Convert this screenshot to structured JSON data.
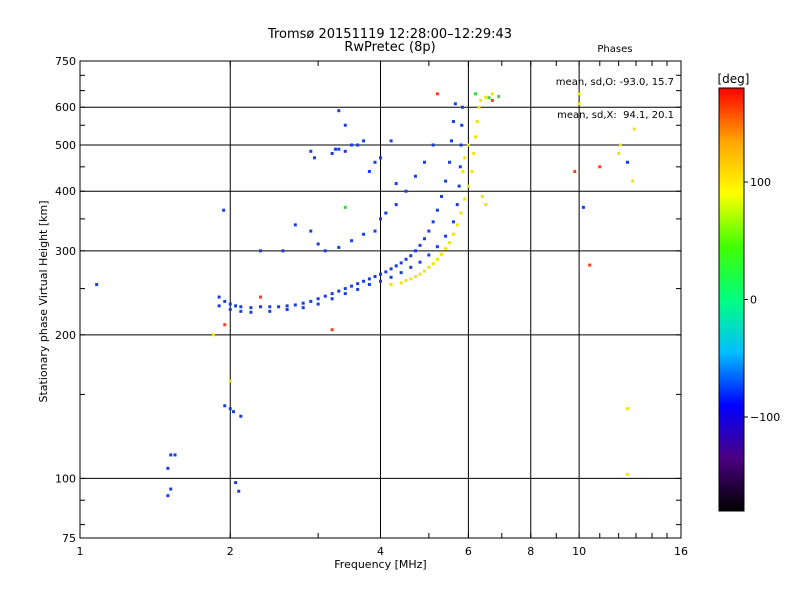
{
  "header": {
    "title1": "Tromsø 20151119 12:28:00–12:29:43",
    "title2": "RwPretec (8p)"
  },
  "phases": {
    "heading": "Phases",
    "line1": "mean, sd,O: -93.0, 15.7",
    "line2": "mean, sd,X:  94.1, 20.1"
  },
  "chart_data": {
    "type": "scatter",
    "xlabel": "Frequency [MHz]",
    "ylabel": "Stationary phase Virtual Height [km]",
    "xscale": "log",
    "yscale": "log",
    "xlim": [
      1,
      16
    ],
    "ylim": [
      75,
      750
    ],
    "xticks": [
      1,
      2,
      4,
      6,
      8,
      10,
      16
    ],
    "yticks": [
      75,
      100,
      200,
      300,
      400,
      500,
      600,
      750
    ],
    "x_gridlines": [
      2,
      4,
      6,
      8,
      10
    ],
    "y_gridlines": [
      100,
      200,
      300,
      400,
      500,
      600
    ],
    "colorbar": {
      "label": "[deg]",
      "range": [
        -180,
        180
      ],
      "ticks": [
        -100,
        0,
        100
      ],
      "colors": [
        "#000000",
        "#4b0082",
        "#0000ff",
        "#00bfff",
        "#00ff80",
        "#40ff00",
        "#ffff00",
        "#ffa500",
        "#ff0000"
      ]
    },
    "series": [
      {
        "mode": "O",
        "color": "#1a3de0",
        "points": [
          [
            1.08,
            255
          ],
          [
            1.5,
            105
          ],
          [
            1.52,
            112
          ],
          [
            1.5,
            92
          ],
          [
            1.55,
            112
          ],
          [
            1.52,
            95
          ],
          [
            1.95,
            142
          ],
          [
            2.0,
            140
          ],
          [
            2.03,
            138
          ],
          [
            2.1,
            135
          ],
          [
            1.94,
            365
          ],
          [
            2.05,
            98
          ],
          [
            2.08,
            94
          ],
          [
            1.9,
            240
          ],
          [
            1.95,
            235
          ],
          [
            2.0,
            232
          ],
          [
            2.05,
            230
          ],
          [
            2.1,
            229
          ],
          [
            2.2,
            228
          ],
          [
            2.3,
            229
          ],
          [
            2.4,
            229
          ],
          [
            2.5,
            229
          ],
          [
            2.6,
            230
          ],
          [
            2.7,
            231
          ],
          [
            2.8,
            233
          ],
          [
            2.9,
            235
          ],
          [
            3.0,
            238
          ],
          [
            3.1,
            241
          ],
          [
            3.2,
            244
          ],
          [
            3.3,
            247
          ],
          [
            3.4,
            250
          ],
          [
            3.5,
            253
          ],
          [
            3.6,
            256
          ],
          [
            3.7,
            259
          ],
          [
            3.8,
            262
          ],
          [
            3.9,
            265
          ],
          [
            4.0,
            268
          ],
          [
            4.1,
            271
          ],
          [
            4.2,
            275
          ],
          [
            4.3,
            279
          ],
          [
            4.4,
            283
          ],
          [
            4.5,
            288
          ],
          [
            4.6,
            293
          ],
          [
            4.7,
            300
          ],
          [
            4.8,
            308
          ],
          [
            4.9,
            318
          ],
          [
            5.0,
            330
          ],
          [
            5.1,
            345
          ],
          [
            5.2,
            365
          ],
          [
            5.3,
            390
          ],
          [
            5.4,
            420
          ],
          [
            5.5,
            460
          ],
          [
            5.55,
            510
          ],
          [
            5.6,
            560
          ],
          [
            5.65,
            610
          ],
          [
            1.9,
            230
          ],
          [
            2.0,
            226
          ],
          [
            2.1,
            224
          ],
          [
            2.2,
            223
          ],
          [
            2.4,
            224
          ],
          [
            2.6,
            226
          ],
          [
            2.8,
            228
          ],
          [
            3.0,
            232
          ],
          [
            3.2,
            238
          ],
          [
            3.4,
            244
          ],
          [
            3.6,
            249
          ],
          [
            3.8,
            255
          ],
          [
            4.0,
            259
          ],
          [
            4.2,
            264
          ],
          [
            4.4,
            270
          ],
          [
            4.6,
            277
          ],
          [
            4.8,
            284
          ],
          [
            5.0,
            294
          ],
          [
            5.2,
            306
          ],
          [
            5.4,
            322
          ],
          [
            5.6,
            345
          ],
          [
            5.7,
            375
          ],
          [
            5.75,
            410
          ],
          [
            5.78,
            450
          ],
          [
            5.8,
            500
          ],
          [
            5.82,
            550
          ],
          [
            5.84,
            600
          ],
          [
            3.0,
            310
          ],
          [
            3.1,
            300
          ],
          [
            3.3,
            305
          ],
          [
            3.5,
            315
          ],
          [
            3.7,
            325
          ],
          [
            3.9,
            330
          ],
          [
            4.0,
            350
          ],
          [
            4.1,
            360
          ],
          [
            4.3,
            375
          ],
          [
            4.5,
            400
          ],
          [
            4.7,
            430
          ],
          [
            4.9,
            460
          ],
          [
            5.1,
            500
          ],
          [
            4.2,
            510
          ],
          [
            4.0,
            470
          ],
          [
            3.9,
            460
          ],
          [
            3.8,
            440
          ],
          [
            4.3,
            415
          ],
          [
            3.4,
            485
          ],
          [
            3.3,
            490
          ],
          [
            3.6,
            500
          ],
          [
            3.7,
            510
          ],
          [
            3.4,
            550
          ],
          [
            2.9,
            485
          ],
          [
            2.95,
            470
          ],
          [
            3.2,
            480
          ],
          [
            3.25,
            490
          ],
          [
            2.9,
            330
          ],
          [
            2.7,
            340
          ],
          [
            3.3,
            590
          ],
          [
            3.5,
            500
          ],
          [
            2.55,
            300
          ],
          [
            2.3,
            300
          ],
          [
            10.2,
            370
          ],
          [
            12.5,
            460
          ]
        ]
      },
      {
        "mode": "X",
        "color": "#f2e600",
        "points": [
          [
            4.2,
            255
          ],
          [
            4.4,
            257
          ],
          [
            4.5,
            260
          ],
          [
            4.6,
            262
          ],
          [
            4.7,
            265
          ],
          [
            4.8,
            268
          ],
          [
            4.9,
            272
          ],
          [
            5.0,
            277
          ],
          [
            5.1,
            282
          ],
          [
            5.2,
            288
          ],
          [
            5.3,
            295
          ],
          [
            5.4,
            303
          ],
          [
            5.5,
            312
          ],
          [
            5.6,
            325
          ],
          [
            5.7,
            340
          ],
          [
            5.8,
            360
          ],
          [
            5.9,
            385
          ],
          [
            6.0,
            410
          ],
          [
            6.1,
            440
          ],
          [
            6.15,
            480
          ],
          [
            6.2,
            520
          ],
          [
            6.25,
            560
          ],
          [
            6.3,
            600
          ],
          [
            6.35,
            620
          ],
          [
            6.5,
            630
          ],
          [
            6.7,
            640
          ],
          [
            5.9,
            470
          ],
          [
            6.0,
            500
          ],
          [
            5.85,
            440
          ],
          [
            6.4,
            390
          ],
          [
            6.5,
            375
          ],
          [
            10.0,
            640
          ],
          [
            10.0,
            610
          ],
          [
            12.0,
            480
          ],
          [
            12.1,
            500
          ],
          [
            12.8,
            420
          ],
          [
            12.9,
            540
          ],
          [
            12.5,
            140
          ],
          [
            12.5,
            102
          ],
          [
            1.85,
            200
          ],
          [
            2.0,
            160
          ]
        ]
      },
      {
        "mode": "other",
        "color": "#ff3b1a",
        "points": [
          [
            5.2,
            640
          ],
          [
            3.2,
            205
          ],
          [
            10.5,
            280
          ],
          [
            11.0,
            450
          ],
          [
            9.8,
            440
          ],
          [
            6.7,
            620
          ],
          [
            2.3,
            240
          ],
          [
            1.95,
            210
          ]
        ]
      },
      {
        "mode": "other",
        "color": "#3fd53f",
        "points": [
          [
            3.4,
            370
          ],
          [
            6.6,
            628
          ],
          [
            6.2,
            640
          ],
          [
            6.9,
            632
          ]
        ]
      }
    ]
  }
}
